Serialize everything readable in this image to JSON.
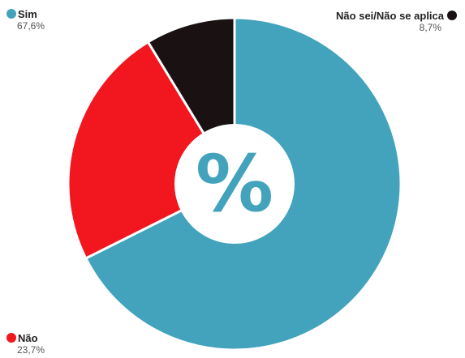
{
  "chart_data": {
    "type": "pie",
    "donut": true,
    "center_label": "%",
    "slices": [
      {
        "name": "Sim",
        "value": 67.6,
        "label": "67,6%",
        "color": "#43a3bd"
      },
      {
        "name": "Não",
        "value": 23.7,
        "label": "23,7%",
        "color": "#f2161f"
      },
      {
        "name": "Não sei/Não se aplica",
        "value": 8.7,
        "label": "8,7%",
        "color": "#1a1212"
      }
    ]
  }
}
